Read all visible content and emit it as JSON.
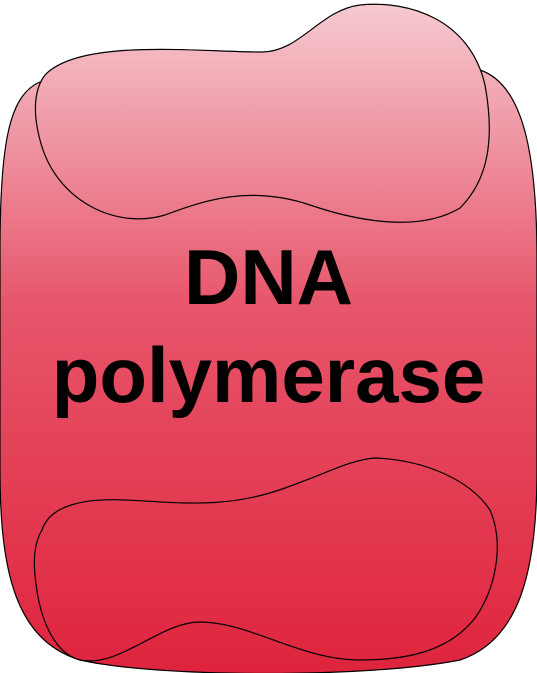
{
  "diagram": {
    "label_line1": "DNA",
    "label_line2": "polymerase",
    "colors": {
      "light": "#f6cbd2",
      "mid": "#e7566b",
      "dark": "#df243d",
      "outline": "#000000"
    }
  }
}
